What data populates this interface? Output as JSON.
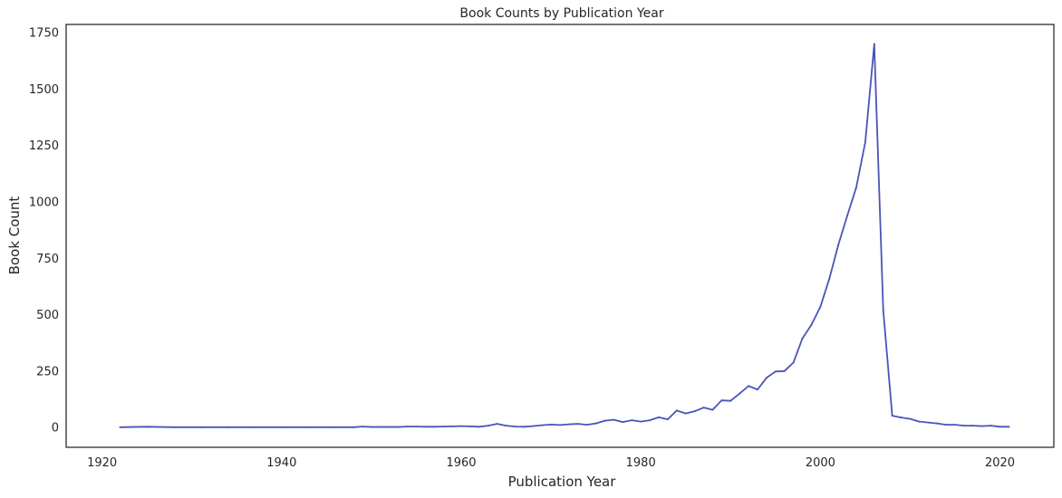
{
  "chart_data": {
    "type": "line",
    "title": "Book Counts by Publication Year",
    "xlabel": "Publication Year",
    "ylabel": "Book Count",
    "xlim": [
      1916,
      2026
    ],
    "ylim": [
      -88,
      1787
    ],
    "xticks": [
      1920,
      1940,
      1960,
      1980,
      2000,
      2020
    ],
    "yticks": [
      0,
      250,
      500,
      750,
      1000,
      1250,
      1500,
      1750
    ],
    "grid": false,
    "line_color": "#4a54b8",
    "series": [
      {
        "x": [
          1922,
          1925,
          1928,
          1931,
          1934,
          1937,
          1940,
          1943,
          1946,
          1948,
          1949,
          1950,
          1951,
          1952,
          1953,
          1954,
          1955,
          1956,
          1957,
          1958,
          1959,
          1960,
          1961,
          1962,
          1963,
          1964,
          1965,
          1966,
          1967,
          1968,
          1969,
          1970,
          1971,
          1972,
          1973,
          1974,
          1975,
          1976,
          1977,
          1978,
          1979,
          1980,
          1981,
          1982,
          1983,
          1984,
          1985,
          1986,
          1987,
          1988,
          1989,
          1990,
          1991,
          1992,
          1993,
          1994,
          1995,
          1996,
          1997,
          1998,
          1999,
          2000,
          2001,
          2002,
          2003,
          2004,
          2005,
          2006,
          2007,
          2008,
          2009,
          2010,
          2011,
          2012,
          2013,
          2014,
          2015,
          2016,
          2017,
          2018,
          2019,
          2020,
          2021
        ],
        "values": [
          1,
          3,
          1,
          1,
          1,
          1,
          1,
          1,
          1,
          1,
          4,
          2,
          2,
          2,
          2,
          4,
          4,
          3,
          3,
          4,
          5,
          6,
          5,
          3,
          8,
          16,
          8,
          4,
          3,
          6,
          10,
          13,
          11,
          14,
          16,
          12,
          18,
          30,
          34,
          24,
          32,
          26,
          32,
          45,
          36,
          75,
          62,
          72,
          88,
          78,
          120,
          118,
          150,
          184,
          168,
          220,
          248,
          250,
          288,
          395,
          455,
          535,
          660,
          810,
          940,
          1065,
          1265,
          1700,
          520,
          52,
          44,
          38,
          26,
          22,
          18,
          12,
          12,
          8,
          8,
          6,
          8,
          3,
          3
        ]
      }
    ]
  }
}
